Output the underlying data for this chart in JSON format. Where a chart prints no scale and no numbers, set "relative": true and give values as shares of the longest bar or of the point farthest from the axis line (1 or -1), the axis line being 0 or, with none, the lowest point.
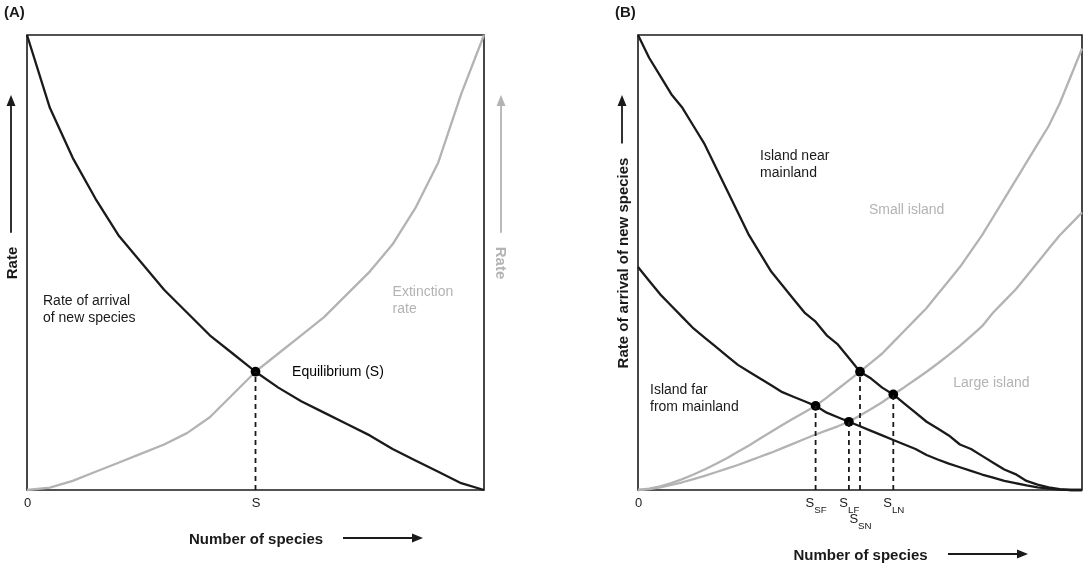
{
  "chart_data": [
    {
      "type": "line",
      "title": "(A)",
      "xlabel": "Number of species",
      "ylabel": "Rate",
      "y2label": "Rate",
      "relative": true,
      "categories": [
        "0",
        null,
        null,
        null,
        null,
        null,
        null,
        null,
        null,
        null,
        "S",
        null,
        null,
        null,
        null,
        null,
        null,
        null,
        null,
        null,
        null
      ],
      "series": [
        {
          "name": "Extinction rate",
          "color": "#b3b3b3",
          "axis": "y2",
          "values": [
            0,
            0.005,
            0.02,
            0.04,
            0.06,
            0.08,
            0.1,
            0.125,
            0.16,
            0.21,
            0.26,
            0.3,
            0.34,
            0.38,
            0.43,
            0.48,
            0.54,
            0.62,
            0.72,
            0.87,
            1
          ]
        },
        {
          "name": "Rate of arrival of new species",
          "color": "#1a1a1a",
          "values": [
            1,
            0.84,
            0.73,
            0.64,
            0.56,
            0.5,
            0.44,
            0.39,
            0.34,
            0.3,
            0.26,
            0.225,
            0.195,
            0.17,
            0.145,
            0.12,
            0.09,
            0.065,
            0.04,
            0.015,
            0
          ]
        },
        {
          "name": "Equilibrium (S)",
          "type": "scatter",
          "marker": "circle",
          "color": "#000000",
          "values": [
            null,
            null,
            null,
            null,
            null,
            null,
            null,
            null,
            null,
            null,
            0.26,
            null,
            null,
            null,
            null,
            null,
            null,
            null,
            null,
            null,
            null
          ]
        },
        {
          "type": "line",
          "line_style": "dashed",
          "color": "#1a1a1a",
          "x": [
            "S",
            "S"
          ],
          "values": [
            0,
            0.26
          ]
        }
      ]
    },
    {
      "type": "line",
      "title": "(B)",
      "xlabel": "Number of species",
      "ylabel": "Rate of arrival of new species",
      "relative": true,
      "categories": [
        "0",
        null,
        null,
        null,
        null,
        null,
        null,
        null,
        null,
        null,
        null,
        null,
        null,
        null,
        null,
        null,
        "S$_{SF}$",
        null,
        null,
        "S$_{LF}$",
        "S$_{SN}$",
        null,
        null,
        "S$_{LN}$",
        null,
        null,
        null,
        null,
        null,
        null,
        null,
        null,
        null,
        null,
        null,
        null,
        null,
        null,
        null,
        null,
        null
      ],
      "series": [
        {
          "name": "Small island",
          "color": "#b3b3b3",
          "values": [
            0,
            0.003,
            0.008,
            0.015,
            0.024,
            0.034,
            0.045,
            0.057,
            0.07,
            0.084,
            0.098,
            0.113,
            0.128,
            0.143,
            0.157,
            0.171,
            0.185,
            0.203,
            0.222,
            0.241,
            0.26,
            0.28,
            0.3,
            0.325,
            0.35,
            0.375,
            0.4,
            0.43,
            0.46,
            0.49,
            0.525,
            0.56,
            0.6,
            0.64,
            0.68,
            0.72,
            0.76,
            0.8,
            0.85,
            0.91,
            0.97
          ]
        },
        {
          "name": "Large island",
          "color": "#b3b3b3",
          "values": [
            0,
            0.002,
            0.006,
            0.011,
            0.017,
            0.024,
            0.031,
            0.039,
            0.047,
            0.055,
            0.064,
            0.073,
            0.082,
            0.092,
            0.102,
            0.112,
            0.122,
            0.131,
            0.14,
            0.15,
            0.164,
            0.178,
            0.193,
            0.21,
            0.226,
            0.243,
            0.26,
            0.278,
            0.297,
            0.317,
            0.338,
            0.36,
            0.39,
            0.415,
            0.44,
            0.47,
            0.5,
            0.53,
            0.56,
            0.585,
            0.61
          ]
        },
        {
          "name": "Island near mainland",
          "color": "#1a1a1a",
          "values": [
            1,
            0.95,
            0.91,
            0.87,
            0.84,
            0.8,
            0.76,
            0.71,
            0.66,
            0.61,
            0.56,
            0.52,
            0.48,
            0.45,
            0.42,
            0.39,
            0.37,
            0.34,
            0.32,
            0.29,
            0.26,
            0.245,
            0.225,
            0.21,
            0.19,
            0.17,
            0.15,
            0.135,
            0.12,
            0.1,
            0.09,
            0.075,
            0.06,
            0.045,
            0.035,
            0.02,
            0.012,
            0.006,
            0.002,
            0,
            0
          ]
        },
        {
          "name": "Island far from mainland",
          "color": "#1a1a1a",
          "values": [
            0.49,
            0.46,
            0.43,
            0.405,
            0.38,
            0.355,
            0.335,
            0.315,
            0.295,
            0.275,
            0.26,
            0.245,
            0.23,
            0.215,
            0.205,
            0.195,
            0.185,
            0.17,
            0.16,
            0.15,
            0.14,
            0.13,
            0.12,
            0.11,
            0.1,
            0.09,
            0.077,
            0.067,
            0.058,
            0.05,
            0.042,
            0.034,
            0.027,
            0.02,
            0.015,
            0.01,
            0.006,
            0.003,
            0.001,
            0,
            0
          ]
        },
        {
          "type": "scatter",
          "marker": "circle",
          "color": "#000000",
          "values": [
            null,
            null,
            null,
            null,
            null,
            null,
            null,
            null,
            null,
            null,
            null,
            null,
            null,
            null,
            null,
            null,
            0.185,
            null,
            null,
            0.15,
            0.26,
            null,
            null,
            0.21,
            null,
            null,
            null,
            null,
            null,
            null,
            null,
            null,
            null,
            null,
            null,
            null,
            null,
            null,
            null,
            null,
            null
          ]
        },
        {
          "type": "line",
          "line_style": "dashed",
          "color": "#1a1a1a",
          "x": [
            "S$_{SF}$",
            "S$_{SF}$"
          ],
          "values": [
            0,
            0.185
          ]
        },
        {
          "type": "line",
          "line_style": "dashed",
          "color": "#1a1a1a",
          "x": [
            "S$_{LF}$",
            "S$_{LF}$"
          ],
          "values": [
            0,
            0.15
          ]
        },
        {
          "type": "line",
          "line_style": "dashed",
          "color": "#1a1a1a",
          "x": [
            "S$_{SN}$",
            "S$_{SN}$"
          ],
          "values": [
            0,
            0.26
          ]
        },
        {
          "type": "line",
          "line_style": "dashed",
          "color": "#1a1a1a",
          "x": [
            "S$_{LN}$",
            "S$_{LN}$"
          ],
          "values": [
            0,
            0.21
          ]
        }
      ]
    }
  ]
}
